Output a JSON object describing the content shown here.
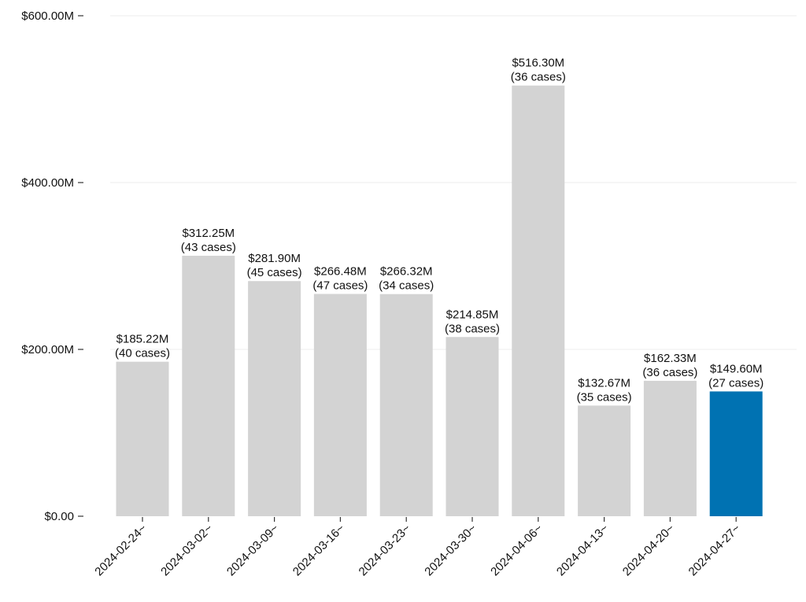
{
  "chart_data": {
    "type": "bar",
    "title": "",
    "xlabel": "",
    "ylabel": "",
    "ylim": [
      0,
      600
    ],
    "y_unit": "millions USD",
    "y_ticks": [
      {
        "value": 0,
        "label": "$0.00"
      },
      {
        "value": 200,
        "label": "$200.00M"
      },
      {
        "value": 400,
        "label": "$400.00M"
      },
      {
        "value": 600,
        "label": "$600.00M"
      }
    ],
    "grid": "horizontal",
    "colors": {
      "default": "#d3d3d3",
      "highlight": "#0072b2"
    },
    "categories": [
      "2024-02-24~",
      "2024-03-02~",
      "2024-03-09~",
      "2024-03-16~",
      "2024-03-23~",
      "2024-03-30~",
      "2024-04-06~",
      "2024-04-13~",
      "2024-04-20~",
      "2024-04-27~"
    ],
    "values": [
      185.22,
      312.25,
      281.9,
      266.48,
      266.32,
      214.85,
      516.3,
      132.67,
      162.33,
      149.6
    ],
    "value_labels": [
      "$185.22M",
      "$312.25M",
      "$281.90M",
      "$266.48M",
      "$266.32M",
      "$214.85M",
      "$516.30M",
      "$132.67M",
      "$162.33M",
      "$149.60M"
    ],
    "case_labels": [
      "(40 cases)",
      "(43 cases)",
      "(45 cases)",
      "(47 cases)",
      "(34 cases)",
      "(38 cases)",
      "(36 cases)",
      "(35 cases)",
      "(36 cases)",
      "(27 cases)"
    ],
    "highlight_index": 9
  }
}
